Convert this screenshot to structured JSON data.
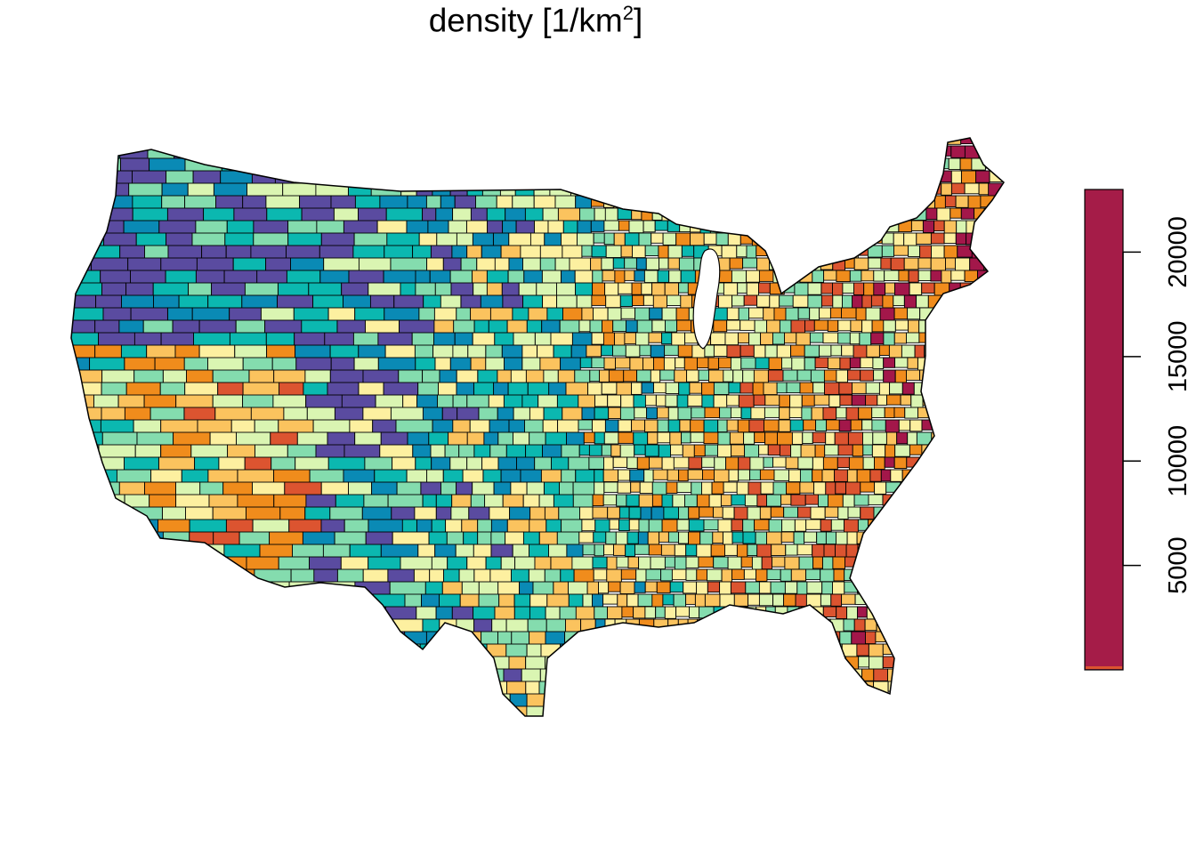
{
  "title": {
    "main": "density [1/km",
    "exponent": "2",
    "close": "]"
  },
  "map": {
    "region": "contiguous United States counties",
    "palette": [
      "#5a4ba0",
      "#0a8ab5",
      "#0bb8b0",
      "#84dcae",
      "#daf5b2",
      "#fdf0a0",
      "#fbc35e",
      "#f08c1c",
      "#dc5430",
      "#a3174a"
    ],
    "border_color": "#000000",
    "background": "#ffffff"
  },
  "legend": {
    "fill_color": "#a51c48",
    "low_color": "#dc5430",
    "range": [
      0,
      23000
    ],
    "ticks": [
      {
        "value": 5000,
        "label": "5000"
      },
      {
        "value": 10000,
        "label": "10000"
      },
      {
        "value": 15000,
        "label": "15000"
      },
      {
        "value": 20000,
        "label": "20000"
      }
    ]
  }
}
